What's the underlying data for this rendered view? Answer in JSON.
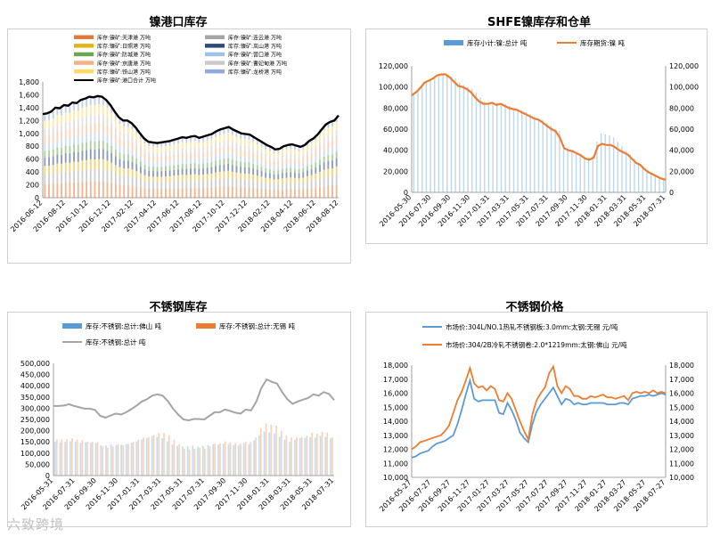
{
  "panels": {
    "p1": {
      "title": "镍港口库存"
    },
    "p2": {
      "title": "SHFE镍库存和仓单"
    },
    "p3": {
      "title": "不锈钢库存"
    },
    "p4": {
      "title": "不锈钢价格"
    }
  },
  "watermark": "六致跨境",
  "chart_data": [
    {
      "id": "c1",
      "type": "bar",
      "title": "镍港口库存",
      "ylim": [
        0,
        1800
      ],
      "yticks": [
        "0",
        "200",
        "400",
        "600",
        "800",
        "1,000",
        "1,200",
        "1,400",
        "1,600",
        "1,800"
      ],
      "xticks": [
        "2016-06-12",
        "2016-08-12",
        "2016-10-12",
        "2016-12-12",
        "2017-02-12",
        "2017-04-12",
        "2017-06-12",
        "2017-08-12",
        "2017-10-12",
        "2017-12-12",
        "2018-02-12",
        "2018-04-12",
        "2018-06-12",
        "2018-08-12"
      ],
      "legend": [
        {
          "name": "库存:镍矿:天津港 万吨",
          "color": "#e07b39",
          "kind": "box"
        },
        {
          "name": "库存:镍矿:连云港 万吨",
          "color": "#a5a5a5",
          "kind": "box"
        },
        {
          "name": "库存:镍矿:日照港 万吨",
          "color": "#e6b117",
          "kind": "box"
        },
        {
          "name": "库存:镍矿:岚山港 万吨",
          "color": "#2e4a7a",
          "kind": "box"
        },
        {
          "name": "库存:镍矿:防城港 万吨",
          "color": "#6aa84f",
          "kind": "box"
        },
        {
          "name": "库存:镍矿:营口港 万吨",
          "color": "#9ec3e6",
          "kind": "box"
        },
        {
          "name": "库存:镍矿:京唐港 万吨",
          "color": "#f4b183",
          "kind": "box"
        },
        {
          "name": "库存:镍矿:曹妃甸港 万吨",
          "color": "#c9c9c9",
          "kind": "box"
        },
        {
          "name": "库存:镍矿:铁山港 万吨",
          "color": "#ffd966",
          "kind": "box"
        },
        {
          "name": "库存:镍矿:龙桥港 万吨",
          "color": "#8faadc",
          "kind": "box"
        },
        {
          "name": "库存:镍矿:港口合计 万吨",
          "color": "#000000",
          "kind": "line"
        }
      ],
      "total": [
        1300,
        1310,
        1340,
        1400,
        1390,
        1440,
        1430,
        1480,
        1470,
        1520,
        1540,
        1570,
        1560,
        1580,
        1570,
        1520,
        1440,
        1340,
        1250,
        1200,
        1200,
        1160,
        1090,
        1000,
        920,
        870,
        860,
        850,
        860,
        870,
        880,
        900,
        920,
        940,
        930,
        950,
        960,
        930,
        950,
        970,
        990,
        1030,
        1060,
        1080,
        1100,
        1060,
        1030,
        1000,
        990,
        980,
        940,
        900,
        860,
        820,
        790,
        750,
        760,
        800,
        820,
        830,
        810,
        790,
        820,
        880,
        920,
        980,
        1060,
        1140,
        1180,
        1200,
        1280
      ],
      "band_fracs": [
        0.16,
        0.12,
        0.1,
        0.1,
        0.08,
        0.08,
        0.1,
        0.08,
        0.1,
        0.08
      ]
    },
    {
      "id": "c2",
      "type": "bar+line",
      "title": "SHFE镍库存和仓单",
      "ylim": [
        0,
        120000
      ],
      "y2lim": [
        0,
        120000
      ],
      "yticks": [
        "0",
        "20,000",
        "40,000",
        "60,000",
        "80,000",
        "100,000",
        "120,000"
      ],
      "xticks": [
        "2016-05-30",
        "2016-07-30",
        "2016-09-30",
        "2016-11-30",
        "2017-01-31",
        "2017-03-31",
        "2017-05-31",
        "2017-07-31",
        "2017-09-30",
        "2017-11-30",
        "2018-01-31",
        "2018-03-31",
        "2018-05-31",
        "2018-07-31"
      ],
      "series": [
        {
          "name": "库存小计:镍:总计 吨",
          "color": "#5b9bd5",
          "kind": "bar",
          "values": [
            95000,
            97000,
            101000,
            104000,
            106000,
            108000,
            110000,
            112000,
            111000,
            110000,
            108000,
            104000,
            102000,
            100000,
            98000,
            95000,
            90000,
            86000,
            84000,
            84000,
            85000,
            83000,
            84000,
            82000,
            80000,
            79000,
            78000,
            76000,
            74000,
            72000,
            70000,
            69000,
            66000,
            63000,
            60000,
            58000,
            44000,
            41000,
            40000,
            38000,
            36000,
            33000,
            33000,
            35000,
            48000,
            56000,
            55000,
            54000,
            52000,
            48000,
            44000,
            40000,
            36000,
            32000,
            28000,
            24000,
            20000,
            18000,
            16000,
            14000,
            13000
          ]
        },
        {
          "name": "库存期货:镍 吨",
          "color": "#ed7d31",
          "kind": "line",
          "values": [
            92000,
            95000,
            99000,
            104000,
            106000,
            108000,
            111000,
            112000,
            112000,
            109000,
            105000,
            101000,
            100000,
            98000,
            95000,
            90000,
            86000,
            84000,
            84000,
            85000,
            83000,
            84000,
            82000,
            80000,
            79000,
            78000,
            76000,
            74000,
            72000,
            70000,
            69000,
            66000,
            63000,
            60000,
            58000,
            52000,
            42000,
            40000,
            39000,
            37000,
            35000,
            32000,
            31000,
            33000,
            44000,
            46000,
            45000,
            45000,
            43000,
            40000,
            38000,
            36000,
            32000,
            28000,
            26000,
            22000,
            19000,
            17000,
            15000,
            13000,
            12000
          ]
        }
      ]
    },
    {
      "id": "c3",
      "type": "bar+line",
      "title": "不锈钢库存",
      "ylim": [
        0,
        500000
      ],
      "yticks": [
        "0",
        "50,000",
        "100,000",
        "150,000",
        "200,000",
        "250,000",
        "300,000",
        "350,000",
        "400,000",
        "450,000",
        "500,000"
      ],
      "xticks": [
        "2016-05-31",
        "2016-07-31",
        "2016-09-30",
        "2016-11-30",
        "2017-01-31",
        "2017-03-31",
        "2017-05-31",
        "2017-07-31",
        "2017-09-30",
        "2017-11-30",
        "2018-01-31",
        "2018-03-31",
        "2018-05-31",
        "2018-07-31"
      ],
      "series": [
        {
          "name": "库存:不锈钢:总计:佛山 吨",
          "color": "#5b9bd5",
          "kind": "bar",
          "values": [
            150000,
            148000,
            150000,
            152000,
            150000,
            146000,
            148000,
            146000,
            144000,
            136000,
            134000,
            138000,
            136000,
            138000,
            140000,
            146000,
            152000,
            160000,
            168000,
            176000,
            172000,
            166000,
            152000,
            138000,
            132000,
            130000,
            130000,
            134000,
            128000,
            132000,
            136000,
            140000,
            138000,
            142000,
            140000,
            136000,
            134000,
            144000,
            140000,
            158000,
            180000,
            196000,
            192000,
            188000,
            172000,
            160000,
            150000,
            160000,
            166000,
            168000,
            172000,
            170000,
            178000,
            172000,
            166000
          ]
        },
        {
          "name": "库存:不锈钢:总计:无锡 吨",
          "color": "#ed7d31",
          "kind": "bar",
          "values": [
            160000,
            162000,
            162000,
            166000,
            160000,
            158000,
            150000,
            152000,
            148000,
            130000,
            124000,
            130000,
            140000,
            134000,
            142000,
            150000,
            160000,
            170000,
            172000,
            180000,
            190000,
            190000,
            180000,
            160000,
            140000,
            120000,
            116000,
            118000,
            124000,
            118000,
            130000,
            142000,
            144000,
            152000,
            148000,
            144000,
            142000,
            150000,
            150000,
            170000,
            210000,
            232000,
            226000,
            222000,
            200000,
            180000,
            170000,
            170000,
            172000,
            178000,
            190000,
            186000,
            194000,
            192000,
            170000
          ]
        },
        {
          "name": "库存:不锈钢:总计 吨",
          "color": "#a5a5a5",
          "kind": "line",
          "values": [
            310000,
            310000,
            312000,
            318000,
            310000,
            304000,
            298000,
            298000,
            292000,
            266000,
            258000,
            268000,
            276000,
            272000,
            282000,
            296000,
            312000,
            330000,
            340000,
            356000,
            362000,
            356000,
            332000,
            298000,
            272000,
            250000,
            246000,
            252000,
            252000,
            250000,
            266000,
            282000,
            282000,
            294000,
            288000,
            280000,
            276000,
            294000,
            290000,
            328000,
            390000,
            428000,
            418000,
            410000,
            372000,
            340000,
            320000,
            330000,
            338000,
            346000,
            362000,
            356000,
            372000,
            364000,
            336000
          ]
        }
      ]
    },
    {
      "id": "c4",
      "type": "line",
      "title": "不锈钢价格",
      "ylim": [
        10000,
        18000
      ],
      "y2lim": [
        10000,
        18000
      ],
      "yticks": [
        "10,000",
        "11,000",
        "12,000",
        "13,000",
        "14,000",
        "15,000",
        "16,000",
        "17,000",
        "18,000"
      ],
      "xticks": [
        "2016-05-27",
        "2016-07-27",
        "2016-09-27",
        "2016-11-27",
        "2017-01-27",
        "2017-03-27",
        "2017-05-27",
        "2017-07-27",
        "2017-09-27",
        "2017-11-27",
        "2018-01-27",
        "2018-03-27",
        "2018-05-27",
        "2018-07-27"
      ],
      "series": [
        {
          "name": "市场价:304L/NO.1热轧不锈钢板:3.0mm:太钢:无锡 元/吨",
          "color": "#5b9bd5",
          "values": [
            11400,
            11500,
            11700,
            11800,
            11900,
            12200,
            12400,
            12500,
            12600,
            12800,
            13000,
            13800,
            14800,
            15900,
            16900,
            15600,
            15400,
            15500,
            15500,
            15500,
            15500,
            14600,
            14500,
            15300,
            14800,
            14100,
            13200,
            12800,
            12500,
            13800,
            14700,
            15200,
            15600,
            16000,
            16400,
            15800,
            15200,
            15600,
            15500,
            15200,
            15300,
            15200,
            15200,
            15300,
            15300,
            15300,
            15300,
            15200,
            15200,
            15200,
            15300,
            15300,
            15200,
            15600,
            15700,
            15800,
            15800,
            15900,
            15800,
            15900,
            16000,
            15900
          ]
        },
        {
          "name": "市场价:304/2B冷轧不锈钢卷:2.0*1219mm:太钢:佛山 元/吨",
          "color": "#ed7d31",
          "values": [
            12000,
            12200,
            12500,
            12600,
            12700,
            12800,
            12900,
            13000,
            13300,
            13700,
            14600,
            15500,
            16100,
            16900,
            17800,
            16700,
            16400,
            16500,
            16200,
            16500,
            16300,
            15500,
            15400,
            16000,
            15600,
            14800,
            14000,
            13300,
            12700,
            14500,
            15500,
            16000,
            16400,
            17400,
            17900,
            16500,
            16000,
            16500,
            16300,
            15800,
            15800,
            15600,
            15600,
            15800,
            15700,
            15800,
            15900,
            15700,
            15700,
            15600,
            15700,
            15800,
            15500,
            16000,
            16100,
            16000,
            16100,
            16000,
            16200,
            16000,
            16100,
            16000
          ]
        }
      ]
    }
  ]
}
